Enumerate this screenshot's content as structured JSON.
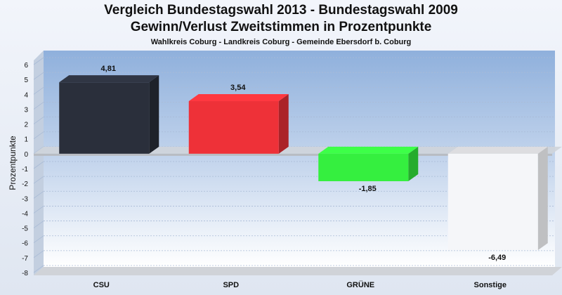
{
  "header": {
    "title": "Vergleich Bundestagswahl 2013 - Bundestagswahl 2009",
    "subtitle": "Gewinn/Verlust Zweitstimmen in Prozentpunkte",
    "sub_subtitle": "Wahlkreis Coburg - Landkreis Coburg - Gemeinde Ebersdorf b. Coburg"
  },
  "chart_data": {
    "type": "bar",
    "title": "Vergleich Bundestagswahl 2013 - Bundestagswahl 2009",
    "subtitle": "Gewinn/Verlust Zweitstimmen in Prozentpunkte",
    "ylabel": "Prozentpunkte",
    "xlabel": "",
    "ylim": [
      -8,
      6
    ],
    "yticks": [
      6,
      5,
      4,
      3,
      2,
      1,
      0,
      -1,
      -2,
      -3,
      -4,
      -5,
      -6,
      -7,
      -8
    ],
    "grid": true,
    "legend": "none",
    "categories": [
      "CSU",
      "SPD",
      "GRÜNE",
      "Sonstige"
    ],
    "values": [
      4.81,
      3.54,
      -1.85,
      -6.49
    ],
    "value_labels": [
      "4,81",
      "3,54",
      "-1,85",
      "-6,49"
    ],
    "colors": [
      "#2a2f3b",
      "#ee3138",
      "#35ef3f",
      "#f5f6f9"
    ]
  }
}
